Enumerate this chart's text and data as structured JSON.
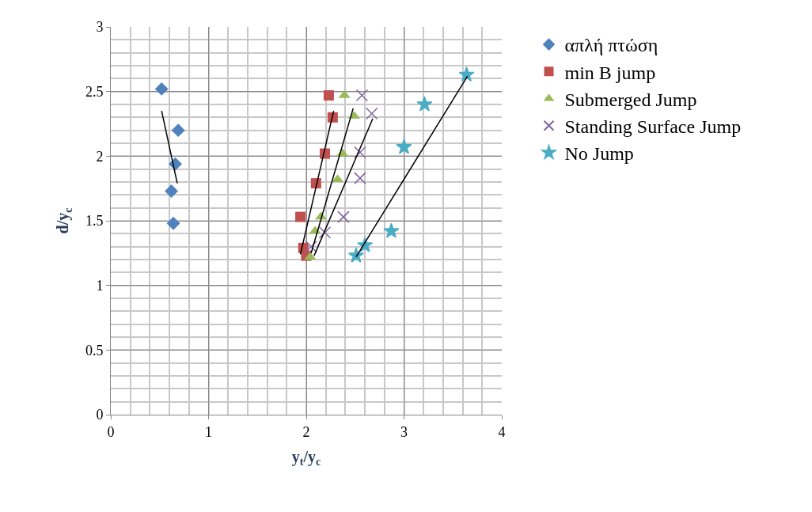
{
  "chart_data": {
    "type": "scatter",
    "xlabel": "y$_{t}$/y$_{c}$",
    "ylabel": "d/y$_{c}$",
    "xlim": [
      0,
      4
    ],
    "xticks": [
      0,
      1,
      2,
      3,
      4
    ],
    "ylim": [
      0,
      3
    ],
    "yticks": [
      0,
      0.5,
      1,
      1.5,
      2,
      2.5,
      3
    ],
    "grid": true,
    "legend": "right",
    "series": [
      {
        "name": "απλή πτώση",
        "color": "#4f81bd",
        "marker": "diamond",
        "x": [
          0.52,
          0.69,
          0.66,
          0.62,
          0.64
        ],
        "values": [
          2.52,
          2.2,
          1.94,
          1.73,
          1.48
        ]
      },
      {
        "name": "min B jump",
        "color": "#c0504d",
        "marker": "square",
        "x": [
          2.23,
          2.27,
          2.19,
          2.1,
          1.94,
          1.97,
          2.0
        ],
        "values": [
          2.47,
          2.3,
          2.02,
          1.79,
          1.53,
          1.29,
          1.23
        ]
      },
      {
        "name": "Submerged Jump",
        "color": "#9bbb59",
        "marker": "triangle",
        "x": [
          2.39,
          2.49,
          2.37,
          2.32,
          2.15,
          2.09,
          2.04
        ],
        "values": [
          2.47,
          2.31,
          2.02,
          1.82,
          1.53,
          1.42,
          1.22
        ]
      },
      {
        "name": "Standing Surface Jump",
        "color": "#8064a2",
        "marker": "cross",
        "x": [
          2.57,
          2.67,
          2.55,
          2.55,
          2.38,
          2.19,
          2.05
        ],
        "values": [
          2.47,
          2.33,
          2.03,
          1.83,
          1.53,
          1.41,
          1.3
        ]
      },
      {
        "name": "No Jump",
        "color": "#4bacc6",
        "marker": "star",
        "x": [
          3.64,
          3.21,
          3.0,
          2.87,
          2.6,
          2.51
        ],
        "values": [
          2.63,
          2.4,
          2.07,
          1.42,
          1.31,
          1.23
        ]
      },
      {
        "type": "line",
        "color": "#000000",
        "marker": "none",
        "x": [
          0.52,
          0.68
        ],
        "values": [
          2.35,
          1.79
        ]
      },
      {
        "type": "line",
        "color": "#000000",
        "marker": "none",
        "x": [
          1.94,
          2.28
        ],
        "values": [
          1.24,
          2.35
        ]
      },
      {
        "type": "line",
        "color": "#000000",
        "marker": "none",
        "x": [
          2.05,
          2.48
        ],
        "values": [
          1.25,
          2.37
        ]
      },
      {
        "type": "line",
        "color": "#000000",
        "marker": "none",
        "x": [
          2.08,
          2.68
        ],
        "values": [
          1.23,
          2.29
        ]
      },
      {
        "type": "line",
        "color": "#000000",
        "marker": "none",
        "x": [
          2.51,
          3.65
        ],
        "values": [
          1.22,
          2.62
        ]
      }
    ]
  }
}
